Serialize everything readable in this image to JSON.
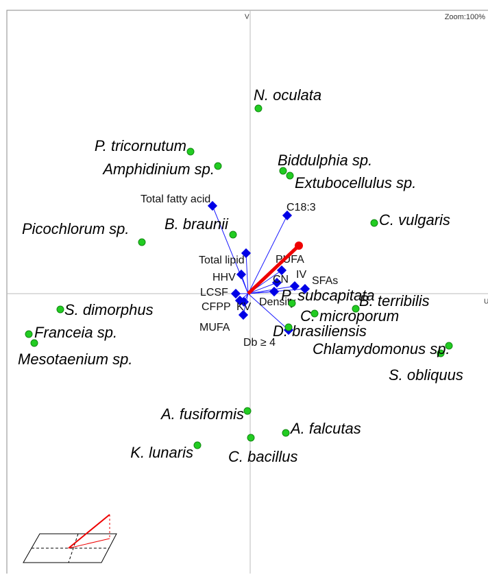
{
  "axis_labels": {
    "vertical": "V",
    "horizontal": "U"
  },
  "zoom": "Zoom:100%",
  "samples": [
    "N. oculata",
    "P. tricornutum",
    "Amphidinium sp.",
    "Biddulphia sp.",
    "Extubocellulus sp.",
    "C. vulgaris",
    "Picochlorum sp.",
    "B. braunii",
    "P. subcapitata",
    "B. terribilis",
    "C. microporum",
    "D. brasiliensis",
    "S. dimorphus",
    "Franceia sp.",
    "Mesotaenium sp.",
    "Chlamydomonus sp.",
    "S. obliquus",
    "A. fusiformis",
    "A. falcutas",
    "C. bacillus",
    "K. lunaris"
  ],
  "variables": [
    "Total fatty acid",
    "C18:3",
    "Total lipid",
    "PUFA",
    "HHV",
    "CN",
    "IV",
    "SFAs",
    "LCSF",
    "CFPP",
    "KV",
    "MUFA",
    "Db ≥ 4",
    "Density"
  ]
}
